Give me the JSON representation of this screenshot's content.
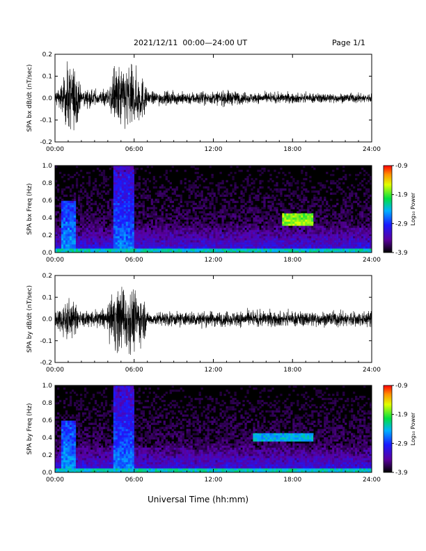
{
  "header": {
    "title": "2021/12/11  00:00—24:00 UT",
    "page": "Page 1/1"
  },
  "footer": {
    "xlabel": "Universal Time (hh:mm)"
  },
  "colorbar": {
    "label": "Log₁₀ Power",
    "ticks": [
      "-0.9",
      "-1.9",
      "-2.9",
      "-3.9"
    ],
    "range": [
      -3.9,
      -0.9
    ]
  },
  "chart_data": [
    {
      "type": "line",
      "panel": "bx-waveform",
      "ylabel": "SPA bx dB/dt (nT/sec)",
      "xlim": [
        0,
        24
      ],
      "ylim": [
        -0.2,
        0.2
      ],
      "xticks": [
        "00:00",
        "06:00",
        "12:00",
        "18:00",
        "24:00"
      ],
      "yticks": [
        "0.2",
        "0.1",
        "0.0",
        "-0.1",
        "-0.2"
      ],
      "envelope": [
        {
          "t": 0.0,
          "amp": 0.06
        },
        {
          "t": 0.6,
          "amp": 0.12
        },
        {
          "t": 0.9,
          "amp": 0.25
        },
        {
          "t": 1.5,
          "amp": 0.25
        },
        {
          "t": 2.0,
          "amp": 0.06
        },
        {
          "t": 4.0,
          "amp": 0.06
        },
        {
          "t": 4.5,
          "amp": 0.25
        },
        {
          "t": 5.8,
          "amp": 0.25
        },
        {
          "t": 6.8,
          "amp": 0.15
        },
        {
          "t": 7.0,
          "amp": 0.05
        },
        {
          "t": 12.0,
          "amp": 0.05
        },
        {
          "t": 13.0,
          "amp": 0.06
        },
        {
          "t": 15.0,
          "amp": 0.04
        },
        {
          "t": 18.0,
          "amp": 0.04
        },
        {
          "t": 24.0,
          "amp": 0.035
        }
      ]
    },
    {
      "type": "heatmap",
      "panel": "bx-spectrogram",
      "ylabel": "SPA bx Freq (Hz)",
      "xlim": [
        0,
        24
      ],
      "ylim": [
        0.0,
        1.0
      ],
      "xticks": [
        "00:00",
        "06:00",
        "12:00",
        "18:00",
        "24:00"
      ],
      "yticks": [
        "1.0",
        "0.8",
        "0.6",
        "0.4",
        "0.2",
        "0.0"
      ],
      "zlim": [
        -3.9,
        -0.9
      ],
      "features": [
        {
          "t0": 4.5,
          "t1": 6.0,
          "f0": 0.0,
          "f1": 1.0,
          "level": -2.6
        },
        {
          "t0": 0.5,
          "t1": 1.5,
          "f0": 0.0,
          "f1": 0.6,
          "level": -2.5
        },
        {
          "t0": 17.2,
          "t1": 19.5,
          "f0": 0.3,
          "f1": 0.45,
          "level": -1.7
        },
        {
          "t0": 0.0,
          "t1": 24.0,
          "f0": 0.0,
          "f1": 0.05,
          "level": -2.3
        }
      ]
    },
    {
      "type": "line",
      "panel": "by-waveform",
      "ylabel": "SPA by dB/dt (nT/sec)",
      "xlim": [
        0,
        24
      ],
      "ylim": [
        -0.2,
        0.2
      ],
      "xticks": [
        "00:00",
        "06:00",
        "12:00",
        "18:00",
        "24:00"
      ],
      "yticks": [
        "0.2",
        "0.1",
        "0.0",
        "-0.1",
        "-0.2"
      ],
      "envelope": [
        {
          "t": 0.0,
          "amp": 0.07
        },
        {
          "t": 0.6,
          "amp": 0.12
        },
        {
          "t": 1.0,
          "amp": 0.17
        },
        {
          "t": 1.5,
          "amp": 0.12
        },
        {
          "t": 2.0,
          "amp": 0.06
        },
        {
          "t": 4.0,
          "amp": 0.08
        },
        {
          "t": 4.5,
          "amp": 0.25
        },
        {
          "t": 5.9,
          "amp": 0.25
        },
        {
          "t": 6.8,
          "amp": 0.15
        },
        {
          "t": 7.0,
          "amp": 0.05
        },
        {
          "t": 12.0,
          "amp": 0.06
        },
        {
          "t": 15.0,
          "amp": 0.06
        },
        {
          "t": 18.0,
          "amp": 0.06
        },
        {
          "t": 24.0,
          "amp": 0.06
        }
      ]
    },
    {
      "type": "heatmap",
      "panel": "by-spectrogram",
      "ylabel": "SPA by Freq (Hz)",
      "xlim": [
        0,
        24
      ],
      "ylim": [
        0.0,
        1.0
      ],
      "xticks": [
        "00:00",
        "06:00",
        "12:00",
        "18:00",
        "24:00"
      ],
      "yticks": [
        "1.0",
        "0.8",
        "0.6",
        "0.4",
        "0.2",
        "0.0"
      ],
      "zlim": [
        -3.9,
        -0.9
      ],
      "features": [
        {
          "t0": 4.5,
          "t1": 6.0,
          "f0": 0.0,
          "f1": 1.0,
          "level": -2.6
        },
        {
          "t0": 0.5,
          "t1": 1.5,
          "f0": 0.0,
          "f1": 0.6,
          "level": -2.5
        },
        {
          "t0": 8.7,
          "t1": 8.75,
          "f0": 0.0,
          "f1": 1.0,
          "level": -1.8
        },
        {
          "t0": 15.0,
          "t1": 19.5,
          "f0": 0.35,
          "f1": 0.45,
          "level": -2.4
        },
        {
          "t0": 0.0,
          "t1": 24.0,
          "f0": 0.0,
          "f1": 0.05,
          "level": -2.3
        }
      ]
    }
  ]
}
